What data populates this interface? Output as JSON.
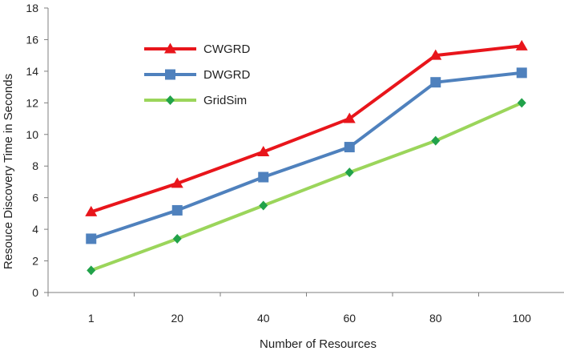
{
  "chart_data": {
    "type": "line",
    "xlabel": "Number of Resources",
    "ylabel": "Resouce Discovery Time in Seconds",
    "categories": [
      "1",
      "20",
      "40",
      "60",
      "80",
      "100"
    ],
    "ylim": [
      0,
      18
    ],
    "yticks": [
      "0",
      "2",
      "4",
      "6",
      "8",
      "10",
      "12",
      "14",
      "16",
      "18"
    ],
    "grid": false,
    "legend_position": "top-left",
    "series": [
      {
        "name": "CWGRD",
        "values": [
          5.1,
          6.9,
          8.9,
          11.0,
          15.0,
          15.6
        ],
        "color": "#e8151b",
        "marker": "triangle"
      },
      {
        "name": "DWGRD",
        "values": [
          3.4,
          5.2,
          7.3,
          9.2,
          13.3,
          13.9
        ],
        "color": "#4f81bd",
        "marker": "square"
      },
      {
        "name": "GridSim",
        "values": [
          1.4,
          3.4,
          5.5,
          7.6,
          9.6,
          12.0
        ],
        "color": "#9bd55b",
        "marker": "diamond",
        "marker_color": "#21a24a"
      }
    ]
  }
}
